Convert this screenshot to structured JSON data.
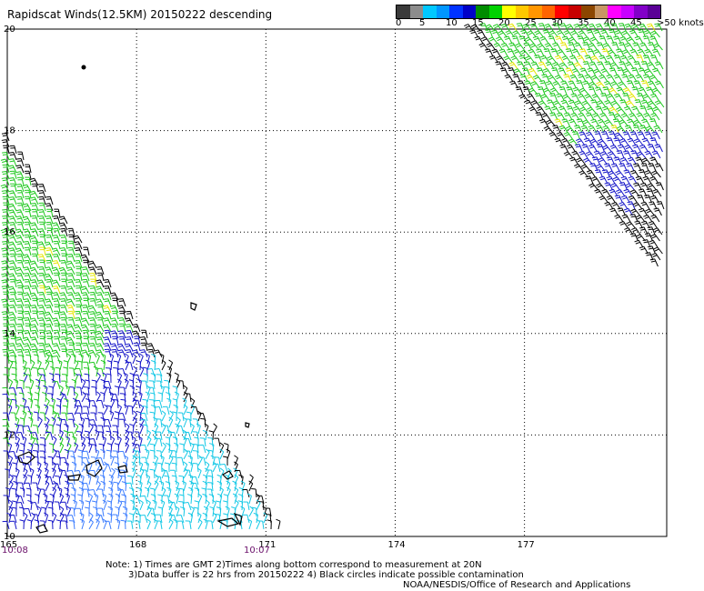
{
  "title": "Rapidscat Winds(12.5KM) 20150222 descending",
  "colorbar": {
    "colors": [
      "#3a3a3a",
      "#8c8c8c",
      "#00c8ff",
      "#0096ff",
      "#0032ff",
      "#0000c8",
      "#008c00",
      "#00d200",
      "#ffff00",
      "#ffc800",
      "#ff9600",
      "#ff6400",
      "#ff0000",
      "#c80000",
      "#8c4600",
      "#c89664",
      "#ff00ff",
      "#c800ff",
      "#8200c8",
      "#5a0096"
    ],
    "labels": [
      "0",
      "5",
      "10",
      "15",
      "20",
      "25",
      "30",
      "35",
      "40",
      "45",
      ">50 knots"
    ]
  },
  "map": {
    "lon_ticks": [
      "165",
      "168",
      "171",
      "174",
      "177"
    ],
    "lat_ticks": [
      "20",
      "18",
      "16",
      "14",
      "12",
      "10"
    ],
    "lon_range": [
      165,
      180.3
    ],
    "lat_range": [
      10,
      20
    ],
    "wind_colors": {
      "black": "#000000",
      "green": "#1ec81e",
      "blue": "#1414c8",
      "lightblue": "#3c7dff",
      "cyan": "#14c8e6",
      "yellow": "#e6e600"
    }
  },
  "times": {
    "left": "10:08",
    "mid": "10:07"
  },
  "notes": {
    "line1": "Note: 1) Times are GMT 2)Times along bottom correspond to measurement at 20N",
    "line2": "3)Data buffer is 22 hrs from 20150222 4) Black circles indicate possible contamination",
    "credit": "NOAA/NESDIS/Office of Research and Applications"
  }
}
